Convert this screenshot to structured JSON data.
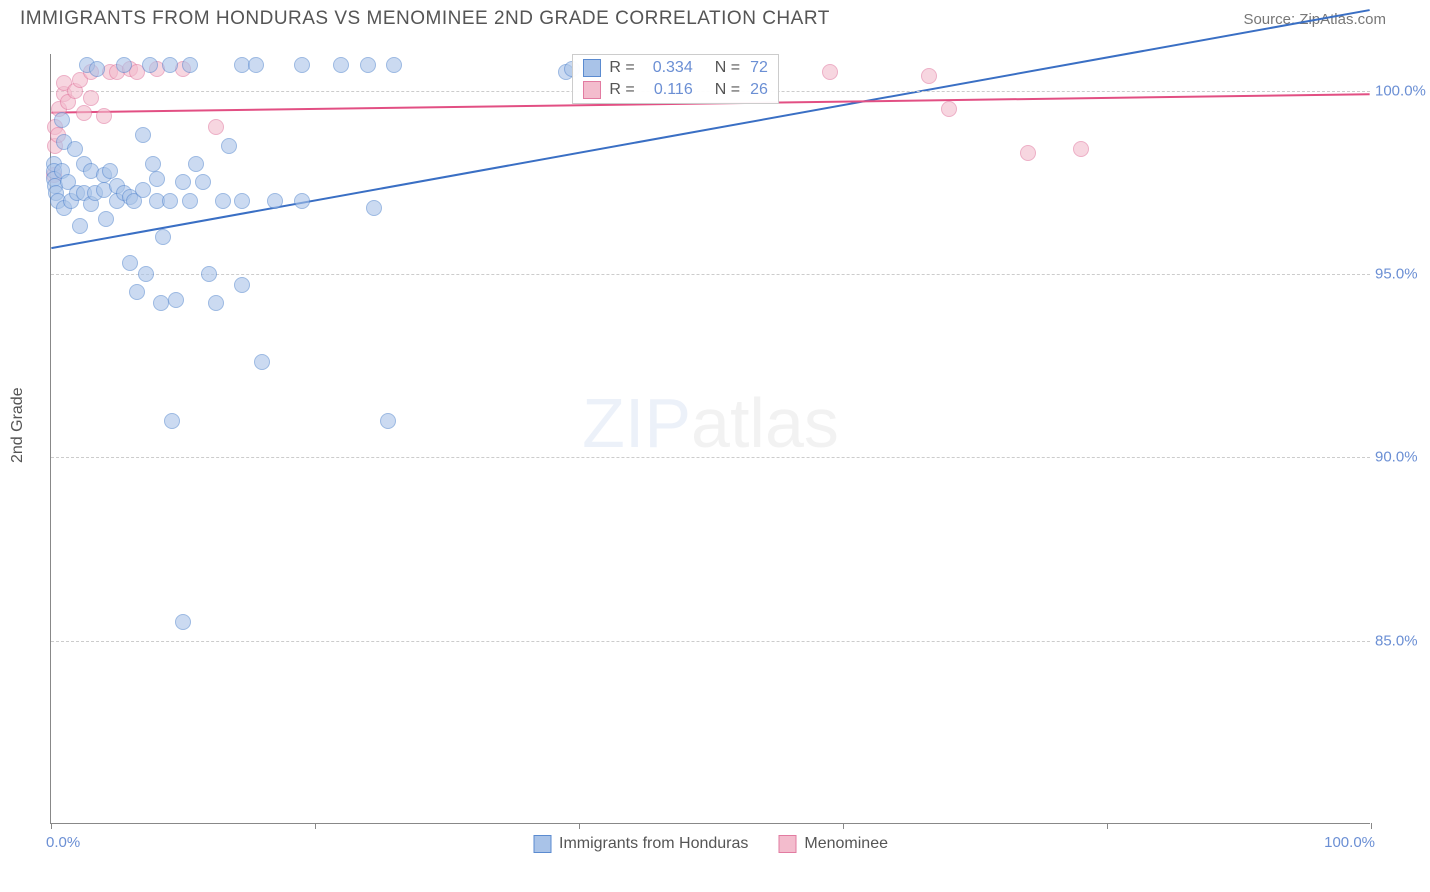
{
  "header": {
    "title": "IMMIGRANTS FROM HONDURAS VS MENOMINEE 2ND GRADE CORRELATION CHART",
    "source": "Source: ZipAtlas.com"
  },
  "chart": {
    "type": "scatter",
    "yaxis_title": "2nd Grade",
    "watermark_bold": "ZIP",
    "watermark_light": "atlas",
    "xlim": [
      0,
      100
    ],
    "ylim": [
      80,
      101
    ],
    "xtick_positions": [
      0,
      20,
      40,
      60,
      80,
      100
    ],
    "x_label_min": "0.0%",
    "x_label_max": "100.0%",
    "yticks": [
      {
        "v": 85,
        "label": "85.0%"
      },
      {
        "v": 90,
        "label": "90.0%"
      },
      {
        "v": 95,
        "label": "95.0%"
      },
      {
        "v": 100,
        "label": "100.0%"
      }
    ],
    "grid_color": "#cccccc",
    "axis_color": "#888888",
    "series": {
      "honduras": {
        "label": "Immigrants from Honduras",
        "fill": "#a9c3e8",
        "stroke": "#5b8bd0",
        "line_color": "#3a6fc4",
        "R": "0.334",
        "N": "72",
        "trend": {
          "x1": 0,
          "y1": 95.7,
          "x2": 100,
          "y2": 102.2
        },
        "points": [
          [
            0.2,
            98.0
          ],
          [
            0.2,
            97.8
          ],
          [
            0.2,
            97.6
          ],
          [
            0.3,
            97.4
          ],
          [
            0.4,
            97.2
          ],
          [
            0.5,
            97.0
          ],
          [
            0.8,
            99.2
          ],
          [
            0.8,
            97.8
          ],
          [
            1.0,
            96.8
          ],
          [
            1.0,
            98.6
          ],
          [
            1.3,
            97.5
          ],
          [
            1.5,
            97.0
          ],
          [
            1.8,
            98.4
          ],
          [
            2.0,
            97.2
          ],
          [
            2.2,
            96.3
          ],
          [
            2.5,
            98.0
          ],
          [
            2.5,
            97.2
          ],
          [
            2.7,
            100.7
          ],
          [
            3.0,
            97.8
          ],
          [
            3.0,
            96.9
          ],
          [
            3.3,
            97.2
          ],
          [
            3.5,
            100.6
          ],
          [
            4.0,
            97.3
          ],
          [
            4.0,
            97.7
          ],
          [
            4.2,
            96.5
          ],
          [
            4.5,
            97.8
          ],
          [
            5.0,
            97.0
          ],
          [
            5.0,
            97.4
          ],
          [
            5.5,
            100.7
          ],
          [
            5.5,
            97.2
          ],
          [
            6.0,
            97.1
          ],
          [
            6.0,
            95.3
          ],
          [
            6.3,
            97.0
          ],
          [
            6.5,
            94.5
          ],
          [
            7.0,
            98.8
          ],
          [
            7.0,
            97.3
          ],
          [
            7.2,
            95.0
          ],
          [
            7.5,
            100.7
          ],
          [
            7.7,
            98.0
          ],
          [
            8.0,
            97.0
          ],
          [
            8.0,
            97.6
          ],
          [
            8.3,
            94.2
          ],
          [
            8.5,
            96.0
          ],
          [
            9.0,
            97.0
          ],
          [
            9.0,
            100.7
          ],
          [
            9.2,
            91.0
          ],
          [
            9.5,
            94.3
          ],
          [
            10.0,
            97.5
          ],
          [
            10.0,
            85.5
          ],
          [
            10.5,
            97.0
          ],
          [
            10.5,
            100.7
          ],
          [
            11.0,
            98.0
          ],
          [
            11.5,
            97.5
          ],
          [
            12.0,
            95.0
          ],
          [
            12.5,
            94.2
          ],
          [
            13.0,
            97.0
          ],
          [
            13.5,
            98.5
          ],
          [
            14.5,
            100.7
          ],
          [
            14.5,
            94.7
          ],
          [
            14.5,
            97.0
          ],
          [
            15.5,
            100.7
          ],
          [
            16.0,
            92.6
          ],
          [
            17.0,
            97.0
          ],
          [
            19.0,
            100.7
          ],
          [
            19.0,
            97.0
          ],
          [
            22.0,
            100.7
          ],
          [
            24.0,
            100.7
          ],
          [
            24.5,
            96.8
          ],
          [
            25.5,
            91.0
          ],
          [
            26.0,
            100.7
          ],
          [
            39.0,
            100.5
          ],
          [
            39.5,
            100.6
          ]
        ]
      },
      "menominee": {
        "label": "Menominee",
        "fill": "#f3bccd",
        "stroke": "#e27ba1",
        "line_color": "#e24f83",
        "R": "0.116",
        "N": "26",
        "trend": {
          "x1": 0,
          "y1": 99.4,
          "x2": 100,
          "y2": 99.9
        },
        "points": [
          [
            0.2,
            97.7
          ],
          [
            0.3,
            98.5
          ],
          [
            0.3,
            99.0
          ],
          [
            0.5,
            98.8
          ],
          [
            0.6,
            99.5
          ],
          [
            1.0,
            99.9
          ],
          [
            1.0,
            100.2
          ],
          [
            1.3,
            99.7
          ],
          [
            1.8,
            100.0
          ],
          [
            2.2,
            100.3
          ],
          [
            2.5,
            99.4
          ],
          [
            3.0,
            99.8
          ],
          [
            3.0,
            100.5
          ],
          [
            4.0,
            99.3
          ],
          [
            4.5,
            100.5
          ],
          [
            5.0,
            100.5
          ],
          [
            6.0,
            100.6
          ],
          [
            6.5,
            100.5
          ],
          [
            8.0,
            100.6
          ],
          [
            10.0,
            100.6
          ],
          [
            12.5,
            99.0
          ],
          [
            59.0,
            100.5
          ],
          [
            66.5,
            100.4
          ],
          [
            68.0,
            99.5
          ],
          [
            74.0,
            98.3
          ],
          [
            78.0,
            98.4
          ]
        ]
      }
    },
    "legend_box": {
      "left_pct": 39.5,
      "rows": [
        {
          "series": "honduras",
          "r_label": "R =",
          "n_label": "N ="
        },
        {
          "series": "menominee",
          "r_label": "R =",
          "n_label": "N ="
        }
      ]
    }
  }
}
